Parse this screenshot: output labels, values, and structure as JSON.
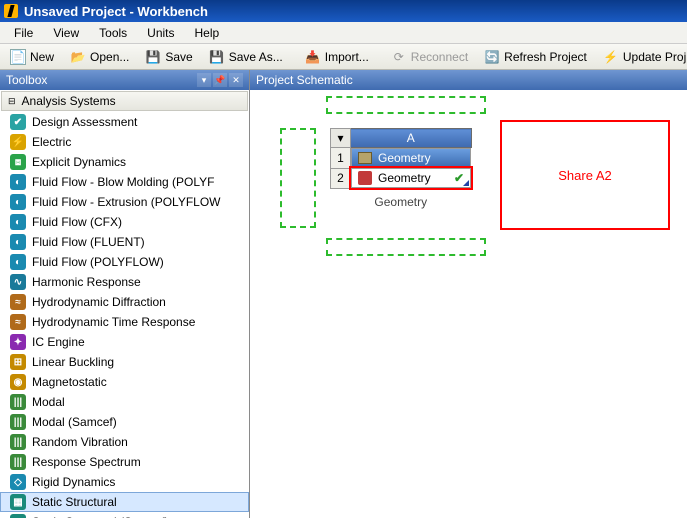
{
  "window": {
    "title": "Unsaved Project - Workbench"
  },
  "menu": {
    "file": "File",
    "view": "View",
    "tools": "Tools",
    "units": "Units",
    "help": "Help"
  },
  "toolbar": {
    "new": "New",
    "open": "Open...",
    "save": "Save",
    "saveas": "Save As...",
    "import": "Import...",
    "reconnect": "Reconnect",
    "refresh": "Refresh Project",
    "update": "Update Proj"
  },
  "toolbox": {
    "title": "Toolbox",
    "section": "Analysis Systems",
    "items": [
      {
        "label": "Design Assessment",
        "color": "#2aa3a3",
        "glyph": "✔"
      },
      {
        "label": "Electric",
        "color": "#d9a300",
        "glyph": "⚡"
      },
      {
        "label": "Explicit Dynamics",
        "color": "#2aa34a",
        "glyph": "⧈"
      },
      {
        "label": "Fluid Flow - Blow Molding (POLYF",
        "color": "#1a8ab0",
        "glyph": "◐"
      },
      {
        "label": "Fluid Flow - Extrusion (POLYFLOW",
        "color": "#1a8ab0",
        "glyph": "◐"
      },
      {
        "label": "Fluid Flow (CFX)",
        "color": "#1a8ab0",
        "glyph": "◐"
      },
      {
        "label": "Fluid Flow (FLUENT)",
        "color": "#1a8ab0",
        "glyph": "◐"
      },
      {
        "label": "Fluid Flow (POLYFLOW)",
        "color": "#1a8ab0",
        "glyph": "◐"
      },
      {
        "label": "Harmonic Response",
        "color": "#1a7a9a",
        "glyph": "∿"
      },
      {
        "label": "Hydrodynamic Diffraction",
        "color": "#b06a1a",
        "glyph": "≈"
      },
      {
        "label": "Hydrodynamic Time Response",
        "color": "#b06a1a",
        "glyph": "≈"
      },
      {
        "label": "IC Engine",
        "color": "#8a2ab0",
        "glyph": "✦"
      },
      {
        "label": "Linear Buckling",
        "color": "#c48a00",
        "glyph": "⊞"
      },
      {
        "label": "Magnetostatic",
        "color": "#c48a00",
        "glyph": "◉"
      },
      {
        "label": "Modal",
        "color": "#3a8a3a",
        "glyph": "|||"
      },
      {
        "label": "Modal (Samcef)",
        "color": "#3a8a3a",
        "glyph": "|||"
      },
      {
        "label": "Random Vibration",
        "color": "#3a8a3a",
        "glyph": "|||"
      },
      {
        "label": "Response Spectrum",
        "color": "#3a8a3a",
        "glyph": "|||"
      },
      {
        "label": "Rigid Dynamics",
        "color": "#1a8ab0",
        "glyph": "◇"
      },
      {
        "label": "Static Structural",
        "color": "#1a8a7a",
        "glyph": "▦",
        "selected": true
      },
      {
        "label": "Static Structural (Samcef)",
        "color": "#1a8a7a",
        "glyph": "▦"
      }
    ]
  },
  "schematic": {
    "title": "Project Schematic",
    "column": "A",
    "rows": [
      {
        "idx": "1",
        "label": "Geometry"
      },
      {
        "idx": "2",
        "label": "Geometry"
      }
    ],
    "caption": "Geometry",
    "share_label": "Share A2"
  },
  "icons": {
    "new_bg": "#eaf3ff",
    "open_bg": "#f5d67a",
    "save_bg": "#4a6fb0",
    "import_bg": "#6aa0e6",
    "reconnect_bg": "#ccc",
    "refresh_bg": "#2a9a2a",
    "update_bg": "#e6a23c"
  }
}
